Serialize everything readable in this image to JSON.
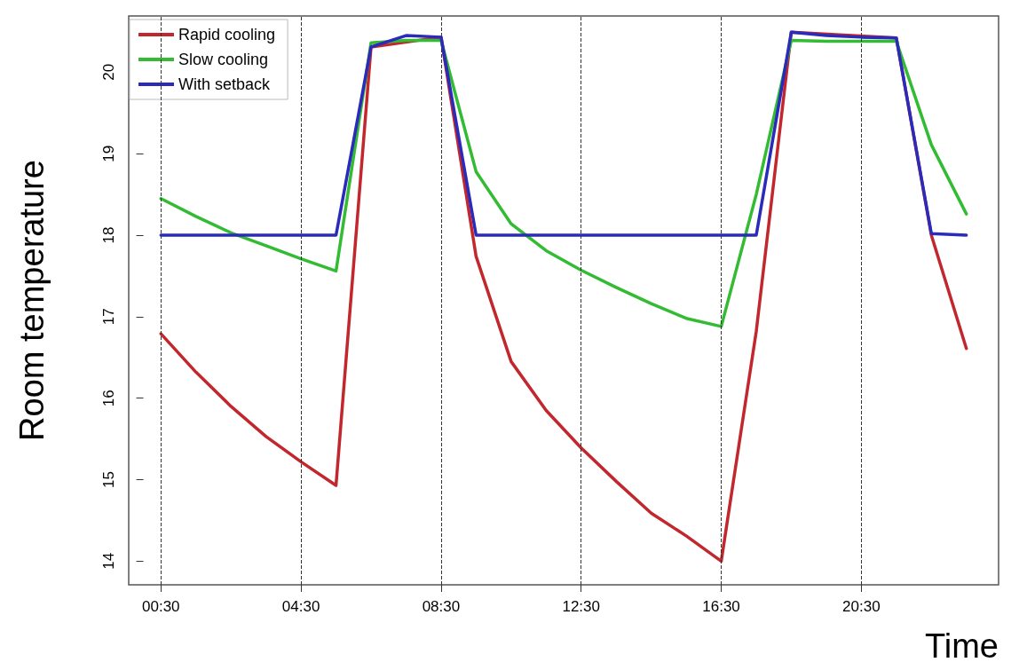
{
  "chart_data": {
    "type": "line",
    "xlabel": "Time",
    "ylabel": "Room temperature",
    "x": [
      0.5,
      1.5,
      2.5,
      3.5,
      4.5,
      5.5,
      6.5,
      7.5,
      8.5,
      9.5,
      10.5,
      11.5,
      12.5,
      13.5,
      14.5,
      15.5,
      16.5,
      17.5,
      18.5,
      19.5,
      20.5,
      21.5,
      22.5,
      23.5
    ],
    "series": [
      {
        "name": "Rapid cooling",
        "color": "#c1272d",
        "values": [
          16.79,
          16.32,
          15.9,
          15.53,
          15.22,
          14.93,
          20.31,
          null,
          20.43,
          17.74,
          16.45,
          15.85,
          15.39,
          14.98,
          14.59,
          14.31,
          14.0,
          16.82,
          20.49,
          null,
          null,
          20.42,
          18.0,
          16.61
        ]
      },
      {
        "name": "Slow cooling",
        "color": "#33bb33",
        "values": [
          18.45,
          18.23,
          18.03,
          17.87,
          17.71,
          17.56,
          20.36,
          20.39,
          20.39,
          18.78,
          18.14,
          17.81,
          17.57,
          17.36,
          17.16,
          16.98,
          16.88,
          18.5,
          20.39,
          20.38,
          20.38,
          20.38,
          19.11,
          18.26
        ]
      },
      {
        "name": "With setback",
        "color": "#2b2bbb",
        "values": [
          18.0,
          18.0,
          18.0,
          18.0,
          18.0,
          18.0,
          20.31,
          20.45,
          20.43,
          18.0,
          18.0,
          18.0,
          18.0,
          18.0,
          18.0,
          18.0,
          18.0,
          18.0,
          20.49,
          20.45,
          20.43,
          20.42,
          18.02,
          18.0
        ]
      }
    ],
    "xlim": [
      -0.42,
      24.42
    ],
    "xticks": [
      {
        "value": 0.5,
        "label": "00:30"
      },
      {
        "value": 4.5,
        "label": "04:30"
      },
      {
        "value": 8.5,
        "label": "08:30"
      },
      {
        "value": 12.5,
        "label": "12:30"
      },
      {
        "value": 16.5,
        "label": "16:30"
      },
      {
        "value": 20.5,
        "label": "20:30"
      }
    ],
    "ylim": [
      13.71,
      20.69
    ],
    "yticks": [
      14,
      15,
      16,
      17,
      18,
      19,
      20
    ],
    "ref_lines": [
      {
        "axis": "x",
        "value": 0.5,
        "color": "#333333",
        "line_style": "dashed"
      },
      {
        "axis": "x",
        "value": 4.5,
        "color": "#333333",
        "line_style": "dashed"
      },
      {
        "axis": "x",
        "value": 8.5,
        "color": "#333333",
        "line_style": "dashed"
      },
      {
        "axis": "x",
        "value": 12.5,
        "color": "#333333",
        "line_style": "dashed"
      },
      {
        "axis": "x",
        "value": 16.5,
        "color": "#333333",
        "line_style": "dashed"
      },
      {
        "axis": "x",
        "value": 20.5,
        "color": "#333333",
        "line_style": "dashed"
      }
    ],
    "legend": "top left",
    "grid": false,
    "marker": "none",
    "line_style": "solid"
  }
}
